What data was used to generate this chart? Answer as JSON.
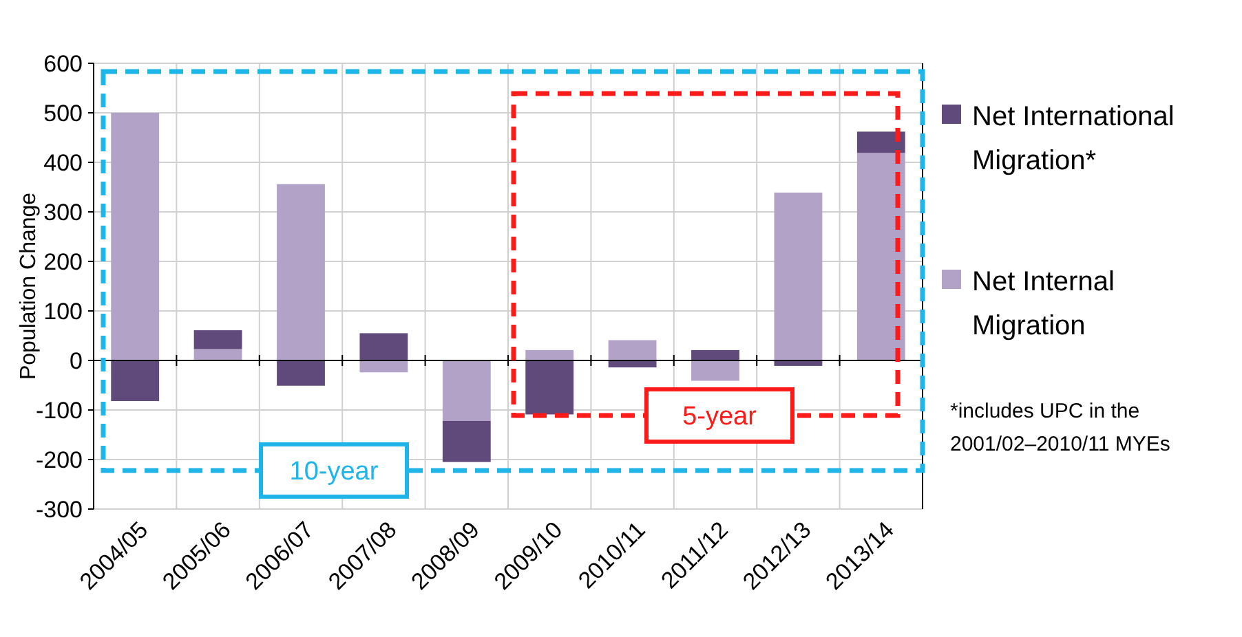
{
  "chart_data": {
    "type": "bar",
    "stacked": true,
    "ylabel": "Population Change",
    "categories": [
      "2004/05",
      "2005/06",
      "2006/07",
      "2007/08",
      "2008/09",
      "2009/10",
      "2010/11",
      "2011/12",
      "2012/13",
      "2013/14"
    ],
    "series": [
      {
        "name": "Net Internal Migration",
        "color": "#b3a2c7",
        "values": [
          500,
          23,
          356,
          -24,
          -122,
          21,
          41,
          -41,
          339,
          419
        ]
      },
      {
        "name": "Net International Migration*",
        "color": "#604a7b",
        "values": [
          -82,
          38,
          -51,
          55,
          -83,
          -109,
          -14,
          21,
          -11,
          43
        ]
      }
    ],
    "ylim": [
      -300,
      600
    ],
    "yticks": [
      -300,
      -200,
      -100,
      0,
      100,
      200,
      300,
      400,
      500,
      600
    ],
    "grid": true,
    "legend": "right",
    "annotations": [
      "10-year",
      "5-year",
      "*includes UPC  in the 2001/02–2010/11 MYEs"
    ]
  }
}
